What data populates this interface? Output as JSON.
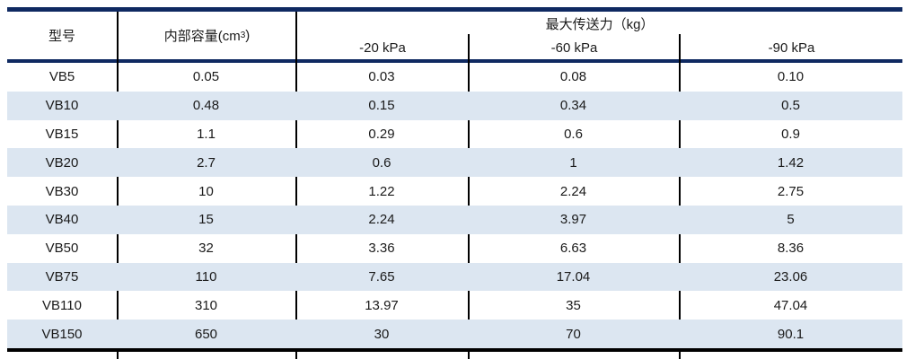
{
  "table": {
    "header": {
      "model": "型号",
      "capacity_prefix": "内部容量(cm",
      "capacity_sup": "3",
      "capacity_suffix": ")",
      "force_group": "最大传送力（kg）",
      "sub_columns": [
        "-20 kPa",
        "-60 kPa",
        "-90 kPa"
      ]
    },
    "rows": [
      {
        "model": "VB5",
        "capacity": "0.05",
        "kpa20": "0.03",
        "kpa60": "0.08",
        "kpa90": "0.10"
      },
      {
        "model": "VB10",
        "capacity": "0.48",
        "kpa20": "0.15",
        "kpa60": "0.34",
        "kpa90": "0.5"
      },
      {
        "model": "VB15",
        "capacity": "1.1",
        "kpa20": "0.29",
        "kpa60": "0.6",
        "kpa90": "0.9"
      },
      {
        "model": "VB20",
        "capacity": "2.7",
        "kpa20": "0.6",
        "kpa60": "1",
        "kpa90": "1.42"
      },
      {
        "model": "VB30",
        "capacity": "10",
        "kpa20": "1.22",
        "kpa60": "2.24",
        "kpa90": "2.75"
      },
      {
        "model": "VB40",
        "capacity": "15",
        "kpa20": "2.24",
        "kpa60": "3.97",
        "kpa90": "5"
      },
      {
        "model": "VB50",
        "capacity": "32",
        "kpa20": "3.36",
        "kpa60": "6.63",
        "kpa90": "8.36"
      },
      {
        "model": "VB75",
        "capacity": "110",
        "kpa20": "7.65",
        "kpa60": "17.04",
        "kpa90": "23.06"
      },
      {
        "model": "VB110",
        "capacity": "310",
        "kpa20": "13.97",
        "kpa60": "35",
        "kpa90": "47.04"
      },
      {
        "model": "VB150",
        "capacity": "650",
        "kpa20": "30",
        "kpa60": "70",
        "kpa90": "90.1"
      }
    ]
  },
  "colors": {
    "rule_navy": "#0f2961",
    "rule_black": "#000000",
    "stripe_blue": "#dce6f1",
    "text": "#1a1a1a"
  }
}
